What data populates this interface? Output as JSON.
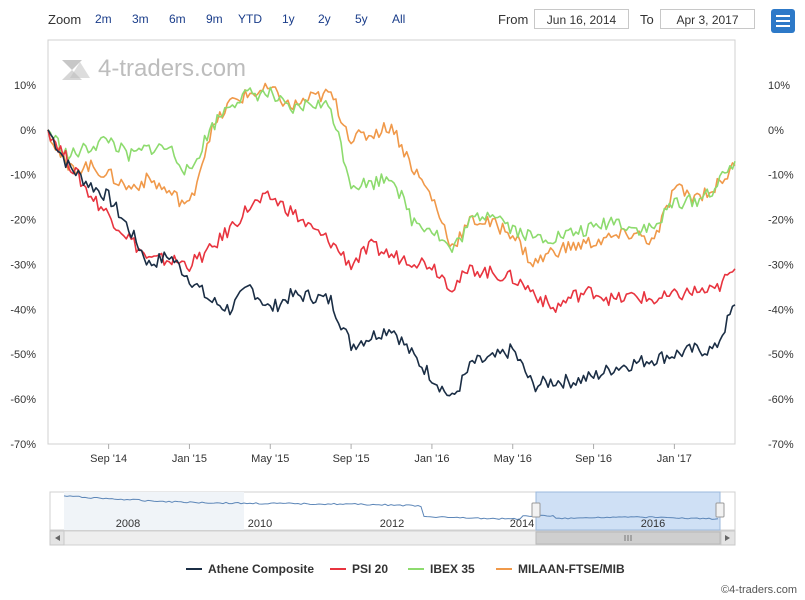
{
  "toolbar": {
    "zoom_label": "Zoom",
    "zoom_buttons": [
      "2m",
      "3m",
      "6m",
      "9m",
      "YTD",
      "1y",
      "2y",
      "5y",
      "All"
    ],
    "from_label": "From",
    "from_value": "Jun 16, 2014",
    "to_label": "To",
    "to_value": "Apr 3, 2017",
    "menu_icon": "hamburger-menu-icon"
  },
  "watermark": "4-traders.com",
  "copyright": "©4-traders.com",
  "colors": {
    "athene": "#1b2e45",
    "psi20": "#e8343f",
    "ibex": "#8ddb6e",
    "mib": "#f0994a",
    "navigator_selection": "#cfe0f5",
    "accent": "#2d79c8"
  },
  "chart_data": {
    "type": "line",
    "title": "",
    "xlabel": "",
    "ylabel": "",
    "ylim": [
      -70,
      20
    ],
    "y_ticks": [
      10,
      0,
      -10,
      -20,
      -30,
      -40,
      -50,
      -60,
      -70
    ],
    "y_tick_labels": [
      "10%",
      "0%",
      "-10%",
      "-20%",
      "-30%",
      "-40%",
      "-50%",
      "-60%",
      "-70%"
    ],
    "x": [
      "Jun '14",
      "Jul '14",
      "Aug '14",
      "Sep '14",
      "Oct '14",
      "Nov '14",
      "Dec '14",
      "Jan '15",
      "Feb '15",
      "Mar '15",
      "Apr '15",
      "May '15",
      "Jun '15",
      "Jul '15",
      "Aug '15",
      "Sep '15",
      "Oct '15",
      "Nov '15",
      "Dec '15",
      "Jan '16",
      "Feb '16",
      "Mar '16",
      "Apr '16",
      "May '16",
      "Jun '16",
      "Jul '16",
      "Aug '16",
      "Sep '16",
      "Oct '16",
      "Nov '16",
      "Dec '16",
      "Jan '17",
      "Feb '17",
      "Mar '17",
      "Apr '17"
    ],
    "x_tick_labels": [
      {
        "label": "Sep '14",
        "index": 3
      },
      {
        "label": "Jan '15",
        "index": 7
      },
      {
        "label": "May '15",
        "index": 11
      },
      {
        "label": "Sep '15",
        "index": 15
      },
      {
        "label": "Jan '16",
        "index": 19
      },
      {
        "label": "May '16",
        "index": 23
      },
      {
        "label": "Sep '16",
        "index": 27
      },
      {
        "label": "Jan '17",
        "index": 31
      }
    ],
    "series": [
      {
        "name": "Athene Composite",
        "values": [
          0,
          -8,
          -12,
          -15,
          -22,
          -30,
          -28,
          -33,
          -38,
          -40,
          -35,
          -40,
          -37,
          -37,
          -38,
          -48,
          -46,
          -44,
          -50,
          -55,
          -60,
          -52,
          -51,
          -49,
          -57,
          -56,
          -56,
          -55,
          -53,
          -52,
          -51,
          -50,
          -49,
          -49,
          -39
        ]
      },
      {
        "name": "PSI 20",
        "values": [
          0,
          -7,
          -14,
          -19,
          -24,
          -29,
          -29,
          -30,
          -27,
          -22,
          -17,
          -15,
          -18,
          -22,
          -25,
          -30,
          -26,
          -28,
          -29,
          -30,
          -35,
          -31,
          -32,
          -33,
          -36,
          -40,
          -37,
          -36,
          -38,
          -37,
          -38,
          -37,
          -36,
          -36,
          -31
        ]
      },
      {
        "name": "IBEX 35",
        "values": [
          0,
          -6,
          -4,
          -2,
          -6,
          -4,
          -4,
          -10,
          0,
          6,
          8,
          8,
          4,
          6,
          5,
          -12,
          -12,
          -10,
          -20,
          -22,
          -27,
          -20,
          -18,
          -22,
          -24,
          -24,
          -23,
          -22,
          -20,
          -22,
          -22,
          -16,
          -16,
          -13,
          -7
        ]
      },
      {
        "name": "MILAAN-FTSE/MIB",
        "values": [
          0,
          -9,
          -8,
          -10,
          -13,
          -11,
          -14,
          -17,
          -1,
          6,
          8,
          9,
          5,
          7,
          8,
          -2,
          -1,
          1,
          -8,
          -15,
          -26,
          -20,
          -21,
          -23,
          -30,
          -27,
          -26,
          -25,
          -24,
          -23,
          -25,
          -13,
          -15,
          -13,
          -8
        ]
      }
    ],
    "navigator": {
      "year_labels": [
        "2008",
        "2010",
        "2012",
        "2014",
        "2016"
      ]
    },
    "legend": [
      "Athene Composite",
      "PSI 20",
      "IBEX 35",
      "MILAAN-FTSE/MIB"
    ]
  }
}
